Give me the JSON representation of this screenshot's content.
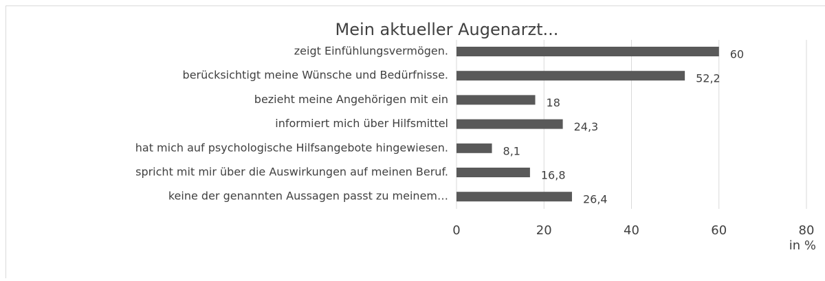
{
  "chart_data": {
    "type": "bar",
    "orientation": "horizontal",
    "title": "Mein aktueller Augenarzt...",
    "categories": [
      "zeigt Einfühlungsvermögen.",
      "berücksichtigt meine Wünsche und Bedürfnisse.",
      "bezieht meine Angehörigen mit ein",
      "informiert mich über Hilfsmittel",
      "hat mich auf psychologische Hilfsangebote hingewiesen.",
      "spricht mit mir über die Auswirkungen auf meinen Beruf.",
      "keine der genannten Aussagen passt zu meinem…"
    ],
    "values": [
      60,
      52.2,
      18,
      24.3,
      8.1,
      16.8,
      26.4
    ],
    "value_labels": [
      "60",
      "52,2",
      "18",
      "24,3",
      "8,1",
      "16,8",
      "26,4"
    ],
    "color": "#595959",
    "xlim": [
      0,
      80
    ],
    "xticks": [
      0,
      20,
      40,
      60,
      80
    ],
    "x_label": "in %",
    "grid": true
  }
}
